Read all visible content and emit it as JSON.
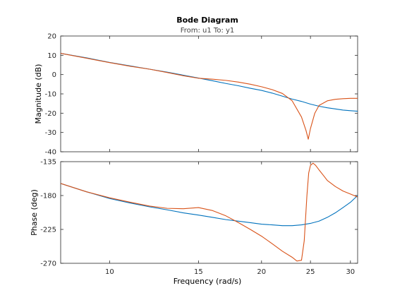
{
  "chart_data": {
    "type": "line",
    "title": "Bode Diagram",
    "subtitle": "From: u1  To: y1",
    "xlabel": "Frequency  (rad/s)",
    "x_scale": "log",
    "xlim": [
      8,
      31
    ],
    "xticks": [
      10,
      15,
      20,
      25,
      30
    ],
    "grid": false,
    "colors": {
      "series_1": "#0072BD",
      "series_2": "#D95319",
      "axes": "#262626"
    },
    "panels": [
      {
        "id": "magnitude",
        "ylabel": "Magnitude (dB)",
        "ylim": [
          -40,
          20
        ],
        "yticks": [
          -40,
          -30,
          -20,
          -10,
          0,
          10,
          20
        ],
        "series": [
          {
            "x": [
              8,
              9,
              10,
              11,
              12,
              13,
              14,
              15,
              16,
              17,
              18,
              19,
              20,
              21,
              22,
              23,
              24,
              25,
              26,
              27,
              28,
              29,
              30,
              31
            ],
            "y": [
              11,
              8.7,
              6.3,
              4.5,
              2.8,
              1.3,
              -0.3,
              -1.8,
              -3.2,
              -4.6,
              -5.8,
              -7.1,
              -8.2,
              -9.6,
              -11.2,
              -12.7,
              -13.9,
              -15.3,
              -16.4,
              -17.2,
              -17.8,
              -18.4,
              -18.7,
              -19
            ]
          },
          {
            "x": [
              8,
              9,
              10,
              11,
              12,
              13,
              14,
              15,
              16,
              17,
              18,
              19,
              20,
              21,
              22,
              23,
              24,
              24.5,
              24.75,
              25,
              25.5,
              26,
              27,
              28,
              29,
              30,
              31
            ],
            "y": [
              11,
              8.5,
              6.2,
              4.3,
              2.8,
              1.1,
              -0.6,
              -1.9,
              -2.4,
              -3,
              -3.9,
              -5,
              -6.3,
              -7.8,
              -9.8,
              -13.6,
              -22,
              -29,
              -33.5,
              -28,
              -20,
              -16,
              -13.6,
              -12.8,
              -12.5,
              -12.3,
              -12.3
            ]
          }
        ]
      },
      {
        "id": "phase",
        "ylabel": "Phase (deg)",
        "ylim": [
          -270,
          -135
        ],
        "yticks": [
          -270,
          -225,
          -180,
          -135
        ],
        "series": [
          {
            "x": [
              8,
              9,
              10,
              11,
              12,
              13,
              14,
              15,
              16,
              17,
              18,
              19,
              20,
              21,
              22,
              23,
              24,
              25,
              26,
              27,
              28,
              29,
              30,
              31
            ],
            "y": [
              -164,
              -175,
              -184,
              -190,
              -195,
              -199,
              -203,
              -206,
              -209,
              -212,
              -214,
              -216,
              -218,
              -219,
              -220,
              -220,
              -219,
              -217,
              -214,
              -209,
              -203,
              -196,
              -189,
              -180
            ]
          },
          {
            "x": [
              8,
              9,
              10,
              11,
              12,
              13,
              14,
              15,
              16,
              17,
              18,
              19,
              20,
              21,
              22,
              23,
              23.5,
              24,
              24.3,
              24.6,
              24.8,
              25,
              25.3,
              25.6,
              26,
              26.5,
              27,
              28,
              29,
              30,
              31
            ],
            "y": [
              -164,
              -175,
              -183,
              -189,
              -194,
              -197,
              -197.5,
              -196,
              -200,
              -207,
              -216,
              -225,
              -234,
              -244,
              -254,
              -262,
              -267,
              -266,
              -240,
              -180,
              -150,
              -140,
              -137,
              -140,
              -146,
              -153,
              -160,
              -168,
              -174,
              -178,
              -182
            ]
          }
        ]
      }
    ]
  }
}
